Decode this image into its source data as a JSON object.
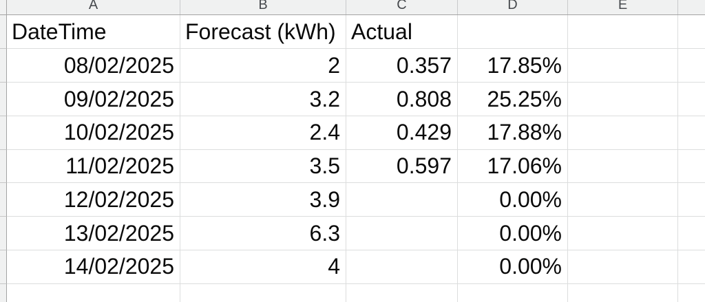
{
  "column_headers": [
    "A",
    "B",
    "C",
    "D",
    "E"
  ],
  "header_row": {
    "datetime": "DateTime",
    "forecast": "Forecast (kWh)",
    "actual": "Actual"
  },
  "data_rows": [
    {
      "date": "08/02/2025",
      "forecast": "2",
      "actual": "0.357",
      "percent": "17.85%"
    },
    {
      "date": "09/02/2025",
      "forecast": "3.2",
      "actual": "0.808",
      "percent": "25.25%"
    },
    {
      "date": "10/02/2025",
      "forecast": "2.4",
      "actual": "0.429",
      "percent": "17.88%"
    },
    {
      "date": "11/02/2025",
      "forecast": "3.5",
      "actual": "0.597",
      "percent": "17.06%"
    },
    {
      "date": "12/02/2025",
      "forecast": "3.9",
      "actual": "",
      "percent": "0.00%"
    },
    {
      "date": "13/02/2025",
      "forecast": "6.3",
      "actual": "",
      "percent": "0.00%"
    },
    {
      "date": "14/02/2025",
      "forecast": "4",
      "actual": "",
      "percent": "0.00%"
    }
  ],
  "colors": {
    "cell_text": "#0a0a0a",
    "header_bg": "#f0f1f1",
    "header_text": "#474a4e",
    "header_border": "#a3a3a3",
    "gridline": "#dcdddd"
  }
}
